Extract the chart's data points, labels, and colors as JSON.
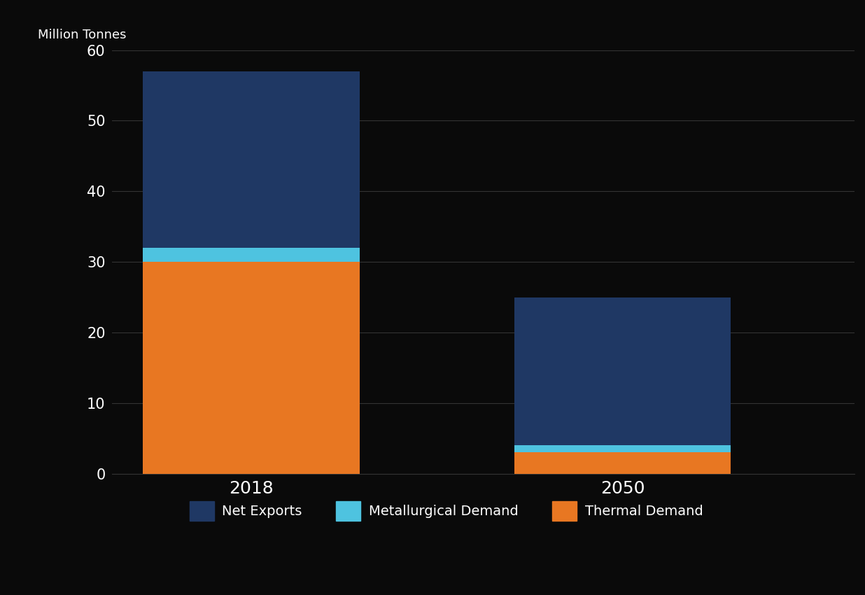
{
  "categories": [
    "2018",
    "2050"
  ],
  "thermal_demand": [
    30,
    3
  ],
  "metallurgical_demand": [
    2,
    1
  ],
  "net_exports": [
    25,
    21
  ],
  "colors": {
    "thermal_demand": "#E87722",
    "metallurgical_demand": "#4EC3E0",
    "net_exports": "#1F3864"
  },
  "ylabel": "Million Tonnes",
  "ylim": [
    0,
    60
  ],
  "yticks": [
    0,
    10,
    20,
    30,
    40,
    50,
    60
  ],
  "legend_labels": [
    "Net Exports",
    "Metallurgical Demand",
    "Thermal Demand"
  ],
  "background_color": "#0A0A0A",
  "text_color": "#FFFFFF",
  "grid_color": "#333333",
  "bar_width": 0.28,
  "bar_positions": [
    0.22,
    0.7
  ]
}
